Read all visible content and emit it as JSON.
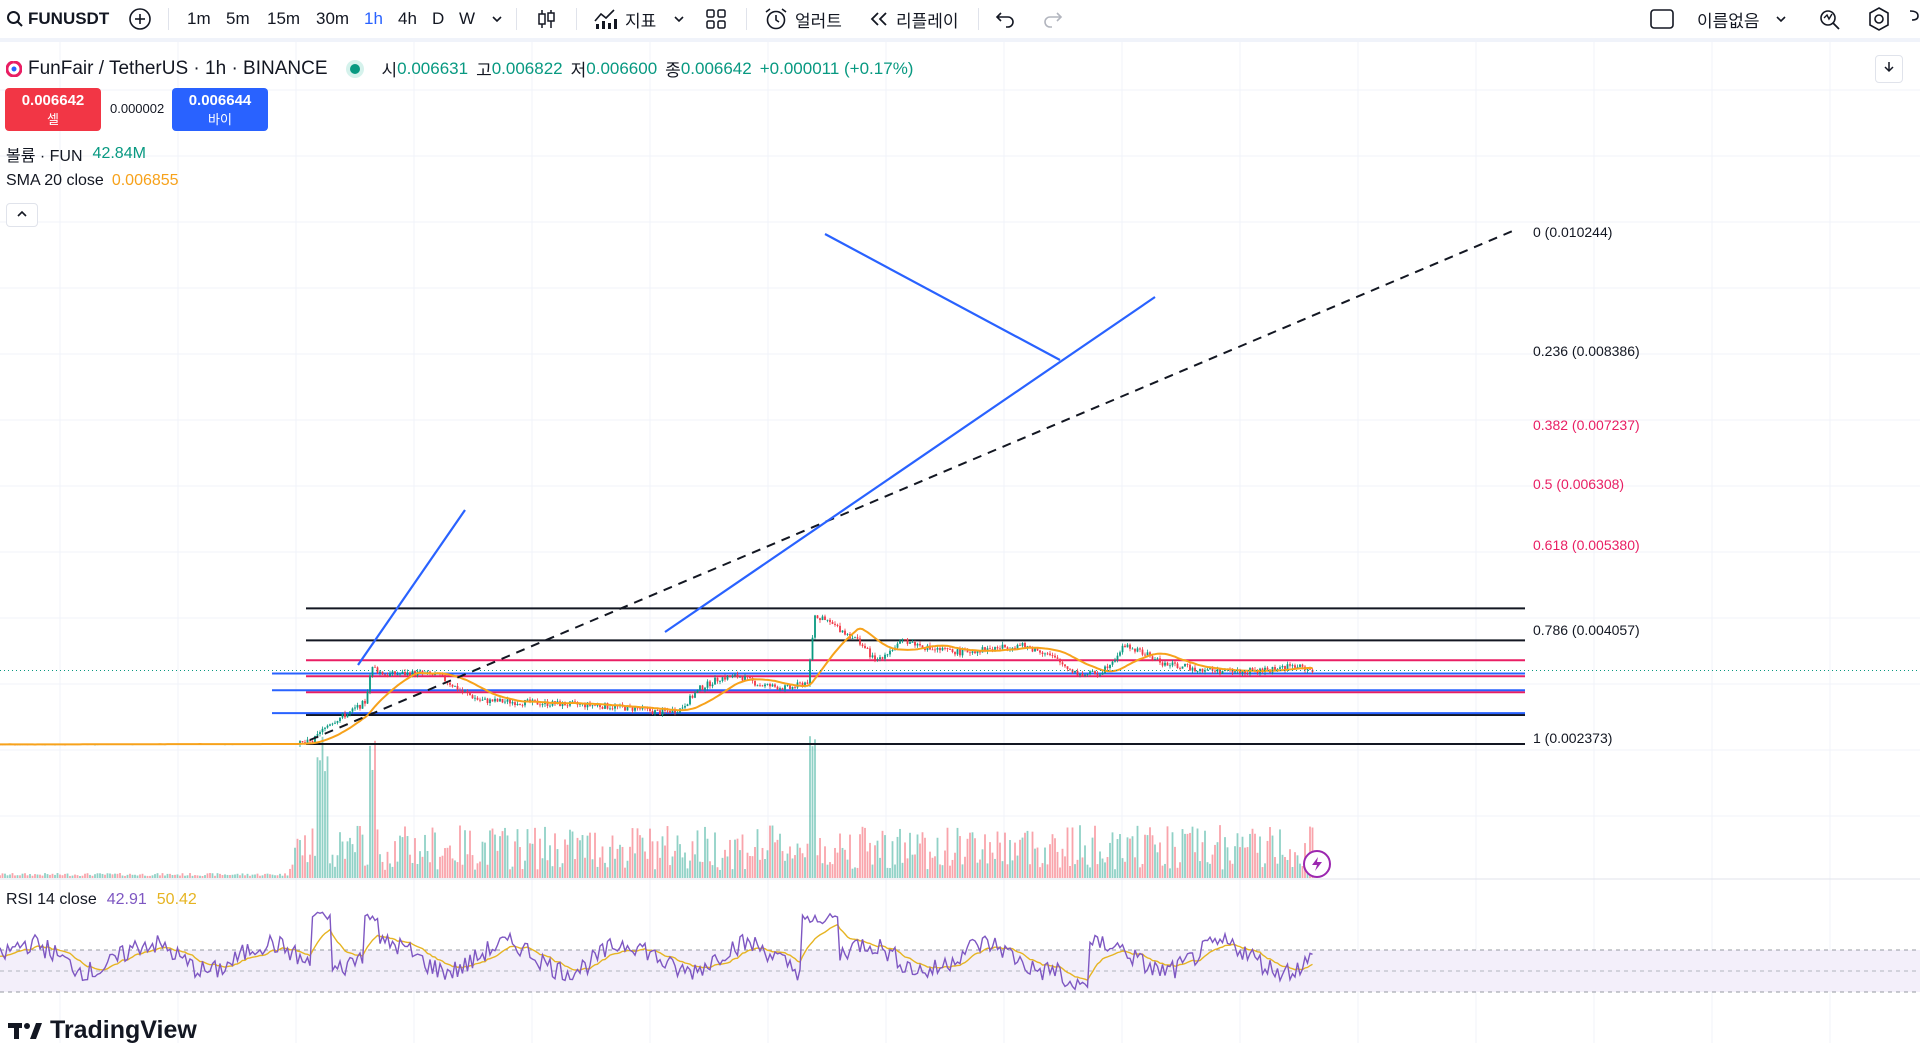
{
  "toolbar": {
    "symbol": "FUNUSDT",
    "intervals": [
      "1m",
      "5m",
      "15m",
      "30m",
      "1h",
      "4h",
      "D",
      "W"
    ],
    "active_interval": "1h",
    "indicators_label": "지표",
    "alert_label": "얼러트",
    "replay_label": "리플레이",
    "layout_name": "이름없음"
  },
  "legend": {
    "title": "FunFair / TetherUS · 1h · BINANCE",
    "open_label": "시",
    "open": "0.006631",
    "high_label": "고",
    "high": "0.006822",
    "low_label": "저",
    "low": "0.006600",
    "close_label": "종",
    "close": "0.006642",
    "change": "+0.000011 (+0.17%)",
    "sell_price": "0.006642",
    "sell_label": "셀",
    "spread": "0.000002",
    "buy_price": "0.006644",
    "buy_label": "바이",
    "volume_label": "볼륨 · FUN",
    "volume_value": "42.84M",
    "sma_label": "SMA 20 close",
    "sma_value": "0.006855",
    "rsi_label": "RSI 14 close",
    "rsi_value": "42.91",
    "rsi_ma_value": "50.42"
  },
  "fib_levels": [
    {
      "label": "0 (0.010244)",
      "price": 0.010244,
      "color": "#131722"
    },
    {
      "label": "0.236 (0.008386)",
      "price": 0.008386,
      "color": "#131722"
    },
    {
      "label": "0.382 (0.007237)",
      "price": 0.007237,
      "color": "#e91e63"
    },
    {
      "label": "0.5 (0.006308)",
      "price": 0.006308,
      "color": "#e91e63"
    },
    {
      "label": "0.618 (0.005380)",
      "price": 0.00538,
      "color": "#e91e63"
    },
    {
      "label": "0.786 (0.004057)",
      "price": 0.004057,
      "color": "#131722"
    },
    {
      "label": "1 (0.002373)",
      "price": 0.002373,
      "color": "#131722"
    }
  ],
  "colors": {
    "up": "#089981",
    "down": "#f23645",
    "sma": "#f7a21b",
    "rsi": "#7e57c2",
    "rsi_ma": "#e6b422",
    "trend": "#2962ff",
    "sell": "#f23645",
    "buy": "#2962ff"
  },
  "branding": "TradingView",
  "chart_data": {
    "type": "candlestick",
    "series": [
      {
        "name": "FunFair / TetherUS",
        "type": "candlestick"
      },
      {
        "name": "SMA 20 close",
        "type": "line"
      },
      {
        "name": "RSI 14 close",
        "type": "line",
        "panel": "rsi"
      }
    ],
    "last_close": 0.006642,
    "price_range": [
      0.0022,
      0.0105
    ]
  }
}
